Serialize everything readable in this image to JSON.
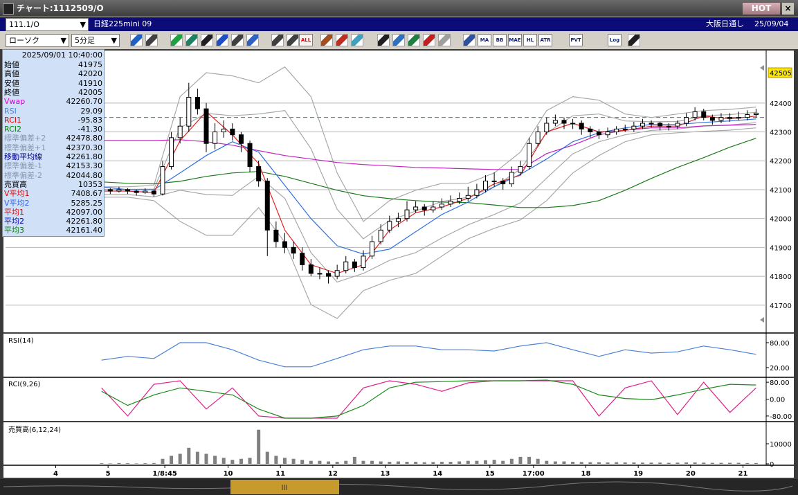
{
  "window": {
    "title": "チャート:1112509/O",
    "hot_button": "HOT"
  },
  "symbol_bar": {
    "symbol": "111.1/O",
    "name": "日経225mini 09",
    "session": "大阪日通し",
    "date": "25/09/04"
  },
  "toolbar": {
    "chart_style": "ローソク",
    "interval": "5分足",
    "icons": [
      "ALL",
      "MA",
      "BB",
      "MAE",
      "HL",
      "ATR",
      "PVT",
      "Log"
    ]
  },
  "info_panel": {
    "datetime": "2025/09/01 10:40:00",
    "rows": [
      {
        "label": "始値",
        "value": "41975",
        "color": "#000000"
      },
      {
        "label": "高値",
        "value": "42020",
        "color": "#000000"
      },
      {
        "label": "安値",
        "value": "41910",
        "color": "#000000"
      },
      {
        "label": "終値",
        "value": "42005",
        "color": "#000000"
      },
      {
        "label": "Vwap",
        "value": "42260.70",
        "color": "#d000d0"
      },
      {
        "label": "RSI",
        "value": "29.09",
        "color": "#4a80d8"
      },
      {
        "label": "RCI1",
        "value": "-95.83",
        "color": "#e00000"
      },
      {
        "label": "RCI2",
        "value": "-41.30",
        "color": "#008000"
      },
      {
        "label": "標準偏差+2",
        "value": "42478.80",
        "color": "#8898b0"
      },
      {
        "label": "標準偏差+1",
        "value": "42370.30",
        "color": "#8898b0"
      },
      {
        "label": "移動平均線",
        "value": "42261.80",
        "color": "#000090"
      },
      {
        "label": "標準偏差-1",
        "value": "42153.30",
        "color": "#8898b0"
      },
      {
        "label": "標準偏差-2",
        "value": "42044.80",
        "color": "#8898b0"
      },
      {
        "label": "売買高",
        "value": "10353",
        "color": "#000000"
      },
      {
        "label": "V平均1",
        "value": "7408.67",
        "color": "#e00000"
      },
      {
        "label": "V平均2",
        "value": "5285.25",
        "color": "#3060e0"
      },
      {
        "label": "平均1",
        "value": "42097.00",
        "color": "#e00000"
      },
      {
        "label": "平均2",
        "value": "42261.80",
        "color": "#0000c0"
      },
      {
        "label": "平均3",
        "value": "42161.40",
        "color": "#008000"
      }
    ]
  },
  "chart_data": {
    "type": "candlestick",
    "xlim": [
      0,
      174
    ],
    "xticks": [
      {
        "value": 11.5,
        "label": "4"
      },
      {
        "value": 23.5,
        "label": "5"
      },
      {
        "value": 36.5,
        "label": "1/8:45"
      },
      {
        "value": 51,
        "label": "10"
      },
      {
        "value": 63,
        "label": "11"
      },
      {
        "value": 75,
        "label": "12"
      },
      {
        "value": 87,
        "label": "13"
      },
      {
        "value": 99,
        "label": "14"
      },
      {
        "value": 111,
        "label": "15"
      },
      {
        "value": 121,
        "label": "17:00"
      },
      {
        "value": 133,
        "label": "18"
      },
      {
        "value": 145,
        "label": "19"
      },
      {
        "value": 157,
        "label": "20"
      },
      {
        "value": 169,
        "label": "21"
      }
    ],
    "ylim": [
      41606,
      42565
    ],
    "yticks": [
      41700,
      41800,
      41900,
      42000,
      42100,
      42200,
      42300,
      42400
    ],
    "grid": true,
    "last_price": 42505,
    "reference_level": 42350,
    "up_color": "#ffffff",
    "down_color": "#000000",
    "x": [
      22,
      24,
      26,
      28,
      30,
      32,
      34,
      36,
      38,
      40,
      42,
      44,
      46,
      48,
      50,
      52,
      54,
      56,
      58,
      60,
      62,
      64,
      66,
      68,
      70,
      72,
      74,
      76,
      78,
      80,
      82,
      84,
      86,
      88,
      90,
      92,
      94,
      96,
      98,
      100,
      102,
      104,
      106,
      108,
      110,
      112,
      114,
      116,
      118,
      120,
      122,
      124,
      126,
      128,
      130,
      132,
      134,
      136,
      138,
      140,
      142,
      144,
      146,
      148,
      150,
      152,
      154,
      156,
      158,
      160,
      162,
      164,
      166,
      168,
      170,
      172
    ],
    "candles": [
      [
        42095,
        42110,
        42085,
        42100
      ],
      [
        42100,
        42105,
        42085,
        42095
      ],
      [
        42095,
        42110,
        42090,
        42100
      ],
      [
        42100,
        42105,
        42085,
        42095
      ],
      [
        42095,
        42100,
        42080,
        42090
      ],
      [
        42090,
        42105,
        42085,
        42095
      ],
      [
        42095,
        42100,
        42075,
        42085
      ],
      [
        42085,
        42200,
        42080,
        42180
      ],
      [
        42180,
        42300,
        42170,
        42280
      ],
      [
        42280,
        42350,
        42260,
        42320
      ],
      [
        42320,
        42470,
        42300,
        42420
      ],
      [
        42420,
        42450,
        42360,
        42380
      ],
      [
        42380,
        42400,
        42230,
        42260
      ],
      [
        42260,
        42330,
        42240,
        42300
      ],
      [
        42300,
        42340,
        42280,
        42310
      ],
      [
        42310,
        42330,
        42270,
        42290
      ],
      [
        42290,
        42300,
        42230,
        42260
      ],
      [
        42260,
        42270,
        42160,
        42180
      ],
      [
        42180,
        42200,
        42110,
        42130
      ],
      [
        42130,
        42140,
        41870,
        41960
      ],
      [
        41960,
        41990,
        41900,
        41920
      ],
      [
        41920,
        41950,
        41880,
        41900
      ],
      [
        41900,
        41920,
        41860,
        41880
      ],
      [
        41880,
        41900,
        41820,
        41840
      ],
      [
        41840,
        41860,
        41800,
        41810
      ],
      [
        41810,
        41830,
        41790,
        41810
      ],
      [
        41810,
        41820,
        41775,
        41800
      ],
      [
        41800,
        41840,
        41790,
        41820
      ],
      [
        41820,
        41870,
        41810,
        41850
      ],
      [
        41850,
        41860,
        41815,
        41830
      ],
      [
        41830,
        41890,
        41820,
        41870
      ],
      [
        41870,
        41940,
        41860,
        41920
      ],
      [
        41920,
        41980,
        41910,
        41960
      ],
      [
        41960,
        42010,
        41950,
        41990
      ],
      [
        41990,
        42020,
        41970,
        42000
      ],
      [
        42000,
        42060,
        41990,
        42030
      ],
      [
        42030,
        42060,
        42020,
        42040
      ],
      [
        42040,
        42050,
        42010,
        42030
      ],
      [
        42030,
        42060,
        42020,
        42040
      ],
      [
        42040,
        42070,
        42030,
        42050
      ],
      [
        42050,
        42080,
        42040,
        42060
      ],
      [
        42060,
        42090,
        42050,
        42070
      ],
      [
        42070,
        42110,
        42060,
        42080
      ],
      [
        42080,
        42120,
        42070,
        42100
      ],
      [
        42100,
        42150,
        42090,
        42130
      ],
      [
        42130,
        42160,
        42110,
        42130
      ],
      [
        42130,
        42140,
        42100,
        42120
      ],
      [
        42120,
        42180,
        42110,
        42160
      ],
      [
        42160,
        42200,
        42150,
        42180
      ],
      [
        42180,
        42280,
        42170,
        42260
      ],
      [
        42260,
        42320,
        42250,
        42300
      ],
      [
        42300,
        42350,
        42290,
        42330
      ],
      [
        42330,
        42360,
        42320,
        42340
      ],
      [
        42340,
        42350,
        42310,
        42330
      ],
      [
        42330,
        42345,
        42310,
        42330
      ],
      [
        42330,
        42340,
        42290,
        42310
      ],
      [
        42310,
        42320,
        42280,
        42300
      ],
      [
        42300,
        42310,
        42275,
        42290
      ],
      [
        42290,
        42315,
        42280,
        42300
      ],
      [
        42300,
        42320,
        42290,
        42310
      ],
      [
        42310,
        42325,
        42300,
        42310
      ],
      [
        42310,
        42335,
        42300,
        42320
      ],
      [
        42320,
        42345,
        42310,
        42330
      ],
      [
        42330,
        42340,
        42315,
        42330
      ],
      [
        42330,
        42335,
        42305,
        42320
      ],
      [
        42320,
        42330,
        42305,
        42320
      ],
      [
        42320,
        42340,
        42310,
        42330
      ],
      [
        42330,
        42365,
        42320,
        42350
      ],
      [
        42350,
        42385,
        42340,
        42370
      ],
      [
        42370,
        42380,
        42340,
        42350
      ],
      [
        42350,
        42360,
        42325,
        42340
      ],
      [
        42340,
        42365,
        42330,
        42350
      ],
      [
        42350,
        42365,
        42335,
        42350
      ],
      [
        42350,
        42370,
        42340,
        42350
      ],
      [
        42350,
        42375,
        42340,
        42360
      ],
      [
        42360,
        42380,
        42350,
        42365
      ]
    ],
    "lines": {
      "x": [
        22,
        28,
        34,
        40,
        46,
        52,
        58,
        64,
        70,
        76,
        82,
        88,
        94,
        100,
        106,
        112,
        118,
        124,
        130,
        136,
        142,
        148,
        154,
        160,
        166,
        172
      ],
      "series": [
        {
          "color": "#a8a8a8",
          "values": [
            42110,
            42110,
            42115,
            42422,
            42505,
            42494,
            42470,
            42525,
            42422,
            42158,
            41990,
            42062,
            42098,
            42122,
            42122,
            42158,
            42230,
            42374,
            42422,
            42410,
            42362,
            42350,
            42362,
            42374,
            42378,
            42386
          ]
        },
        {
          "color": "#a8a8a8",
          "values": [
            42101,
            42101,
            42102,
            42314,
            42364,
            42356,
            42362,
            42374,
            42242,
            42032,
            41930,
            41993,
            42026,
            42059,
            42074,
            42110,
            42171,
            42296,
            42356,
            42362,
            42338,
            42335,
            42336,
            42356,
            42360,
            42368
          ]
        },
        {
          "color": "#a8a8a8",
          "values": [
            42083,
            42083,
            42075,
            42098,
            42083,
            42080,
            42146,
            42070,
            41882,
            41780,
            41810,
            41855,
            41882,
            41933,
            41978,
            42014,
            42054,
            42140,
            42224,
            42266,
            42290,
            42305,
            42310,
            42320,
            42324,
            42332
          ]
        },
        {
          "color": "#a8a8a8",
          "values": [
            42074,
            42074,
            42062,
            41990,
            41942,
            41942,
            42038,
            41918,
            41702,
            41654,
            41750,
            41786,
            41810,
            41870,
            41930,
            41966,
            41995,
            42062,
            42158,
            42218,
            42266,
            42290,
            42297,
            42302,
            42306,
            42314
          ]
        },
        {
          "color": "#c020c0",
          "values": [
            42270,
            42270,
            42270,
            42273,
            42266,
            42254,
            42235,
            42218,
            42206,
            42194,
            42187,
            42182,
            42177,
            42175,
            42172,
            42170,
            42170,
            42225,
            42254,
            42290,
            42306,
            42314,
            42314,
            42321,
            42323,
            42326
          ]
        },
        {
          "color": "#1a7a1a",
          "values": [
            42127,
            42122,
            42120,
            42129,
            42146,
            42158,
            42163,
            42146,
            42122,
            42098,
            42079,
            42069,
            42062,
            42057,
            42055,
            42047,
            42038,
            42038,
            42045,
            42062,
            42098,
            42139,
            42177,
            42211,
            42247,
            42278
          ]
        },
        {
          "color": "#2f6fe0",
          "values": [
            42110,
            42100,
            42100,
            42158,
            42218,
            42266,
            42230,
            42115,
            42000,
            41906,
            41877,
            41894,
            41954,
            42014,
            42057,
            42110,
            42153,
            42206,
            42266,
            42297,
            42314,
            42326,
            42326,
            42333,
            42338,
            42345
          ]
        },
        {
          "color": "#e02020",
          "values": [
            42095,
            42095,
            42090,
            42270,
            42370,
            42290,
            42190,
            41960,
            41840,
            41810,
            41840,
            41960,
            42020,
            42040,
            42070,
            42120,
            42150,
            42300,
            42330,
            42300,
            42305,
            42320,
            42320,
            42355,
            42345,
            42355
          ]
        }
      ]
    },
    "rsi": {
      "title": "RSI(14)",
      "ylim": [
        0,
        100
      ],
      "yticks": [
        {
          "value": 80,
          "label": "80.00"
        },
        {
          "value": 20,
          "label": "20.00"
        }
      ],
      "color": "#4a80d8",
      "values": [
        38,
        47,
        42,
        80,
        80,
        63,
        38,
        22,
        22,
        42,
        63,
        72,
        72,
        63,
        63,
        60,
        72,
        80,
        63,
        47,
        63,
        55,
        58,
        72,
        63,
        52
      ]
    },
    "rci": {
      "title": "RCI(9,26)",
      "ylim": [
        -100,
        100
      ],
      "yticks": [
        {
          "value": 80,
          "label": "80.00"
        },
        {
          "value": 0,
          "label": "0.00"
        },
        {
          "value": -80,
          "label": "-80.00"
        }
      ],
      "series": [
        {
          "color": "#e0208a",
          "values": [
            53,
            -80,
            70,
            87,
            -47,
            53,
            -80,
            -90,
            -90,
            -90,
            53,
            87,
            70,
            37,
            77,
            87,
            87,
            87,
            87,
            -80,
            53,
            87,
            -73,
            80,
            -63,
            53
          ]
        },
        {
          "color": "#1a8a1a",
          "values": [
            37,
            -30,
            20,
            53,
            37,
            20,
            -47,
            -90,
            -90,
            -80,
            -30,
            53,
            80,
            83,
            87,
            87,
            87,
            90,
            70,
            20,
            3,
            -3,
            20,
            47,
            70,
            67
          ]
        }
      ]
    },
    "volume": {
      "title": "売買高(6,12,24)",
      "ylim": [
        0,
        20000
      ],
      "yticks": [
        10000,
        0
      ],
      "color": "#808080",
      "values": [
        300,
        200,
        400,
        300,
        200,
        300,
        400,
        2500,
        4000,
        5000,
        8000,
        6000,
        5000,
        4000,
        3000,
        2000,
        2500,
        3000,
        17000,
        6000,
        4000,
        3000,
        2500,
        2000,
        1500,
        1500,
        1200,
        1000,
        1500,
        3500,
        1500,
        1500,
        1200,
        1000,
        1200,
        1000,
        1000,
        800,
        900,
        1000,
        1000,
        1200,
        1500,
        1500,
        1800,
        2000,
        1500,
        2500,
        3500,
        3500,
        2500,
        1500,
        1200,
        1200,
        1000,
        900,
        800,
        800,
        700,
        800,
        700,
        700,
        600,
        600,
        600,
        500,
        600,
        700,
        700,
        600,
        500,
        500,
        500,
        500,
        400,
        400
      ]
    }
  }
}
